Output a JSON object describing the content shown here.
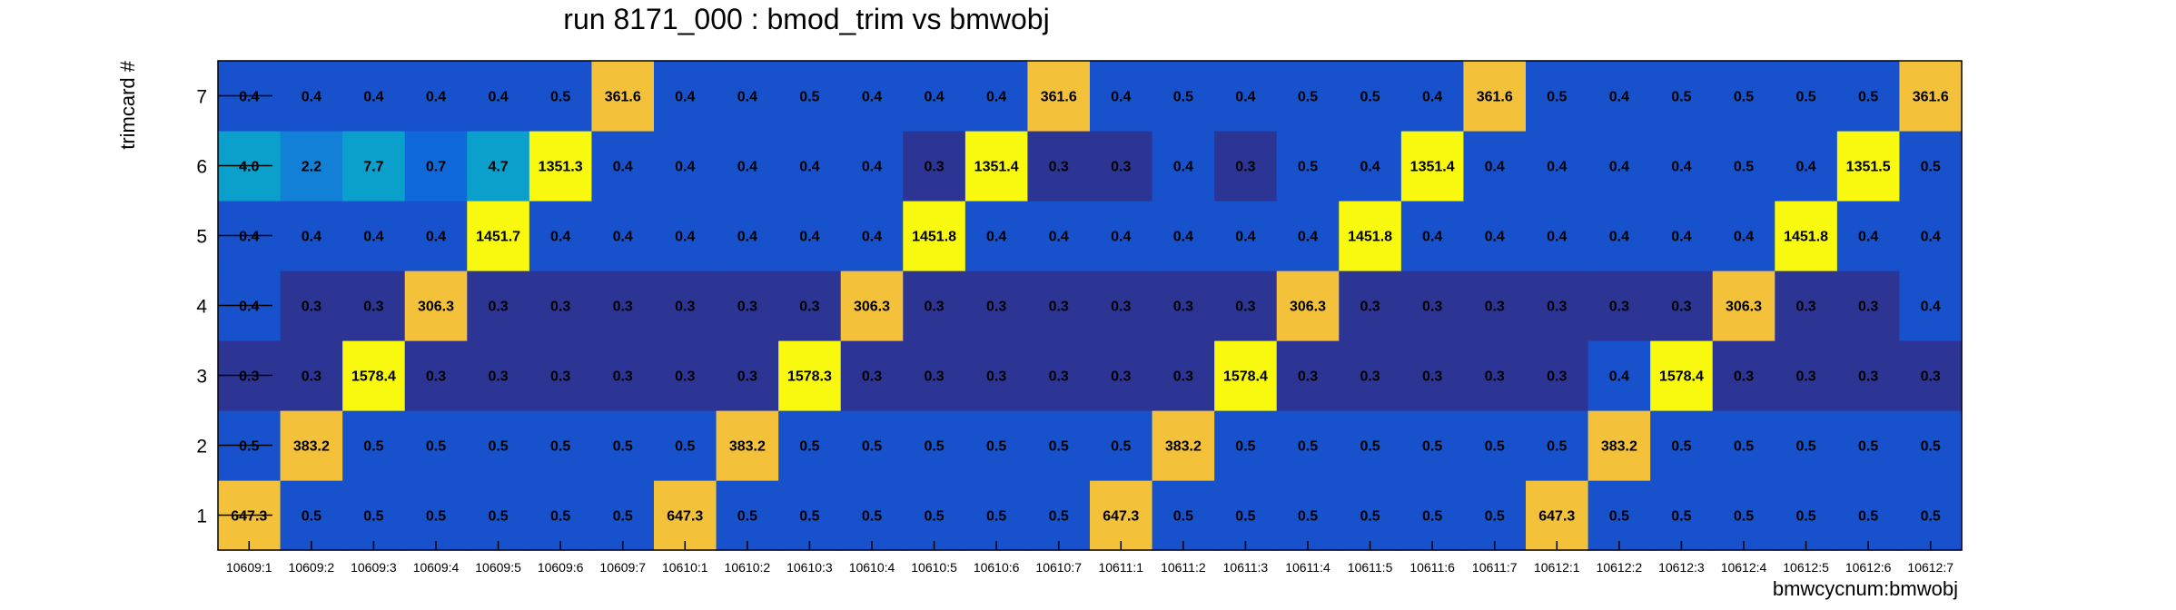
{
  "chart_data": {
    "type": "heatmap",
    "title": "run 8171_000 : bmod_trim vs bmwobj",
    "xlabel": "bmwcycnum:bmwobj",
    "ylabel": "trimcard #",
    "x_categories": [
      "10609:1",
      "10609:2",
      "10609:3",
      "10609:4",
      "10609:5",
      "10609:6",
      "10609:7",
      "10610:1",
      "10610:2",
      "10610:3",
      "10610:4",
      "10610:5",
      "10610:6",
      "10610:7",
      "10611:1",
      "10611:2",
      "10611:3",
      "10611:4",
      "10611:5",
      "10611:6",
      "10611:7",
      "10612:1",
      "10612:2",
      "10612:3",
      "10612:4",
      "10612:5",
      "10612:6",
      "10612:7"
    ],
    "y_categories": [
      "1",
      "2",
      "3",
      "4",
      "5",
      "6",
      "7"
    ],
    "values": [
      [
        "647.3",
        "0.5",
        "0.5",
        "0.5",
        "0.5",
        "0.5",
        "0.5",
        "647.3",
        "0.5",
        "0.5",
        "0.5",
        "0.5",
        "0.5",
        "0.5",
        "647.3",
        "0.5",
        "0.5",
        "0.5",
        "0.5",
        "0.5",
        "0.5",
        "647.3",
        "0.5",
        "0.5",
        "0.5",
        "0.5",
        "0.5",
        "0.5"
      ],
      [
        "0.5",
        "383.2",
        "0.5",
        "0.5",
        "0.5",
        "0.5",
        "0.5",
        "0.5",
        "383.2",
        "0.5",
        "0.5",
        "0.5",
        "0.5",
        "0.5",
        "0.5",
        "383.2",
        "0.5",
        "0.5",
        "0.5",
        "0.5",
        "0.5",
        "0.5",
        "383.2",
        "0.5",
        "0.5",
        "0.5",
        "0.5",
        "0.5"
      ],
      [
        "0.3",
        "0.3",
        "1578.4",
        "0.3",
        "0.3",
        "0.3",
        "0.3",
        "0.3",
        "0.3",
        "1578.3",
        "0.3",
        "0.3",
        "0.3",
        "0.3",
        "0.3",
        "0.3",
        "1578.4",
        "0.3",
        "0.3",
        "0.3",
        "0.3",
        "0.3",
        "0.4",
        "1578.4",
        "0.3",
        "0.3",
        "0.3",
        "0.3"
      ],
      [
        "0.4",
        "0.3",
        "0.3",
        "306.3",
        "0.3",
        "0.3",
        "0.3",
        "0.3",
        "0.3",
        "0.3",
        "306.3",
        "0.3",
        "0.3",
        "0.3",
        "0.3",
        "0.3",
        "0.3",
        "306.3",
        "0.3",
        "0.3",
        "0.3",
        "0.3",
        "0.3",
        "0.3",
        "306.3",
        "0.3",
        "0.3",
        "0.4"
      ],
      [
        "0.4",
        "0.4",
        "0.4",
        "0.4",
        "1451.7",
        "0.4",
        "0.4",
        "0.4",
        "0.4",
        "0.4",
        "0.4",
        "1451.8",
        "0.4",
        "0.4",
        "0.4",
        "0.4",
        "0.4",
        "0.4",
        "1451.8",
        "0.4",
        "0.4",
        "0.4",
        "0.4",
        "0.4",
        "0.4",
        "1451.8",
        "0.4",
        "0.4"
      ],
      [
        "4.0",
        "2.2",
        "7.7",
        "0.7",
        "4.7",
        "1351.3",
        "0.4",
        "0.4",
        "0.4",
        "0.4",
        "0.4",
        "0.3",
        "1351.4",
        "0.3",
        "0.3",
        "0.4",
        "0.3",
        "0.5",
        "0.4",
        "1351.4",
        "0.4",
        "0.4",
        "0.4",
        "0.4",
        "0.5",
        "0.4",
        "1351.5",
        "0.5"
      ],
      [
        "0.4",
        "0.4",
        "0.4",
        "0.4",
        "0.4",
        "0.5",
        "361.6",
        "0.4",
        "0.4",
        "0.5",
        "0.4",
        "0.4",
        "0.4",
        "361.6",
        "0.4",
        "0.5",
        "0.4",
        "0.5",
        "0.5",
        "0.4",
        "361.6",
        "0.5",
        "0.4",
        "0.5",
        "0.5",
        "0.5",
        "0.5",
        "361.6"
      ]
    ],
    "colors": {
      "dark_navy": "#2c3594",
      "royal_blue": "#1752cc",
      "medium_blue": "#1069d9",
      "steel_blue": "#1280d6",
      "teal_blue": "#0aa0cb",
      "amber": "#f4c23a",
      "yellow": "#f8f90f",
      "frame": "#000000"
    },
    "grid": false,
    "legend": "none"
  }
}
